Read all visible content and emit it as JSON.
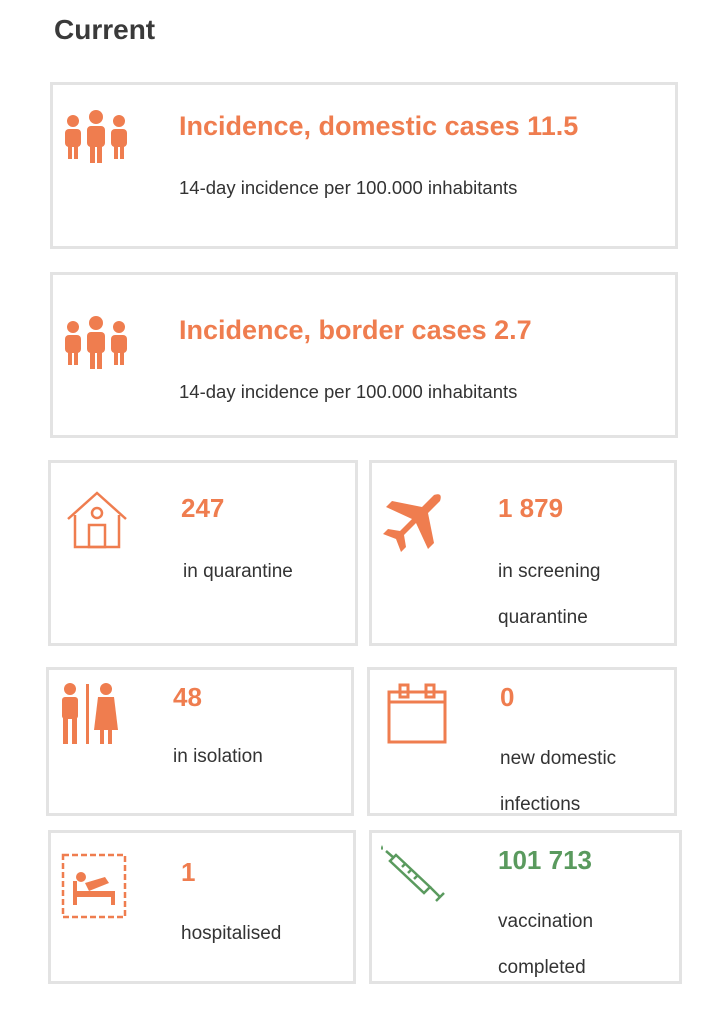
{
  "heading": "Current",
  "cards": [
    {
      "title": "Incidence, domestic cases 11.5",
      "subtitle": "14-day incidence per 100.000 inhabitants"
    },
    {
      "title": "Incidence, border cases 2.7",
      "subtitle": "14-day incidence per 100.000 inhabitants"
    }
  ],
  "tiles": [
    {
      "value": "247",
      "label": "in quarantine"
    },
    {
      "value": "1 879",
      "label": "in screening quarantine"
    },
    {
      "value": "48",
      "label": "in isolation"
    },
    {
      "value": "0",
      "label": "new domestic infections"
    },
    {
      "value": "1",
      "label": "hospitalised"
    },
    {
      "value": "101 713",
      "label": "vaccination completed"
    }
  ]
}
